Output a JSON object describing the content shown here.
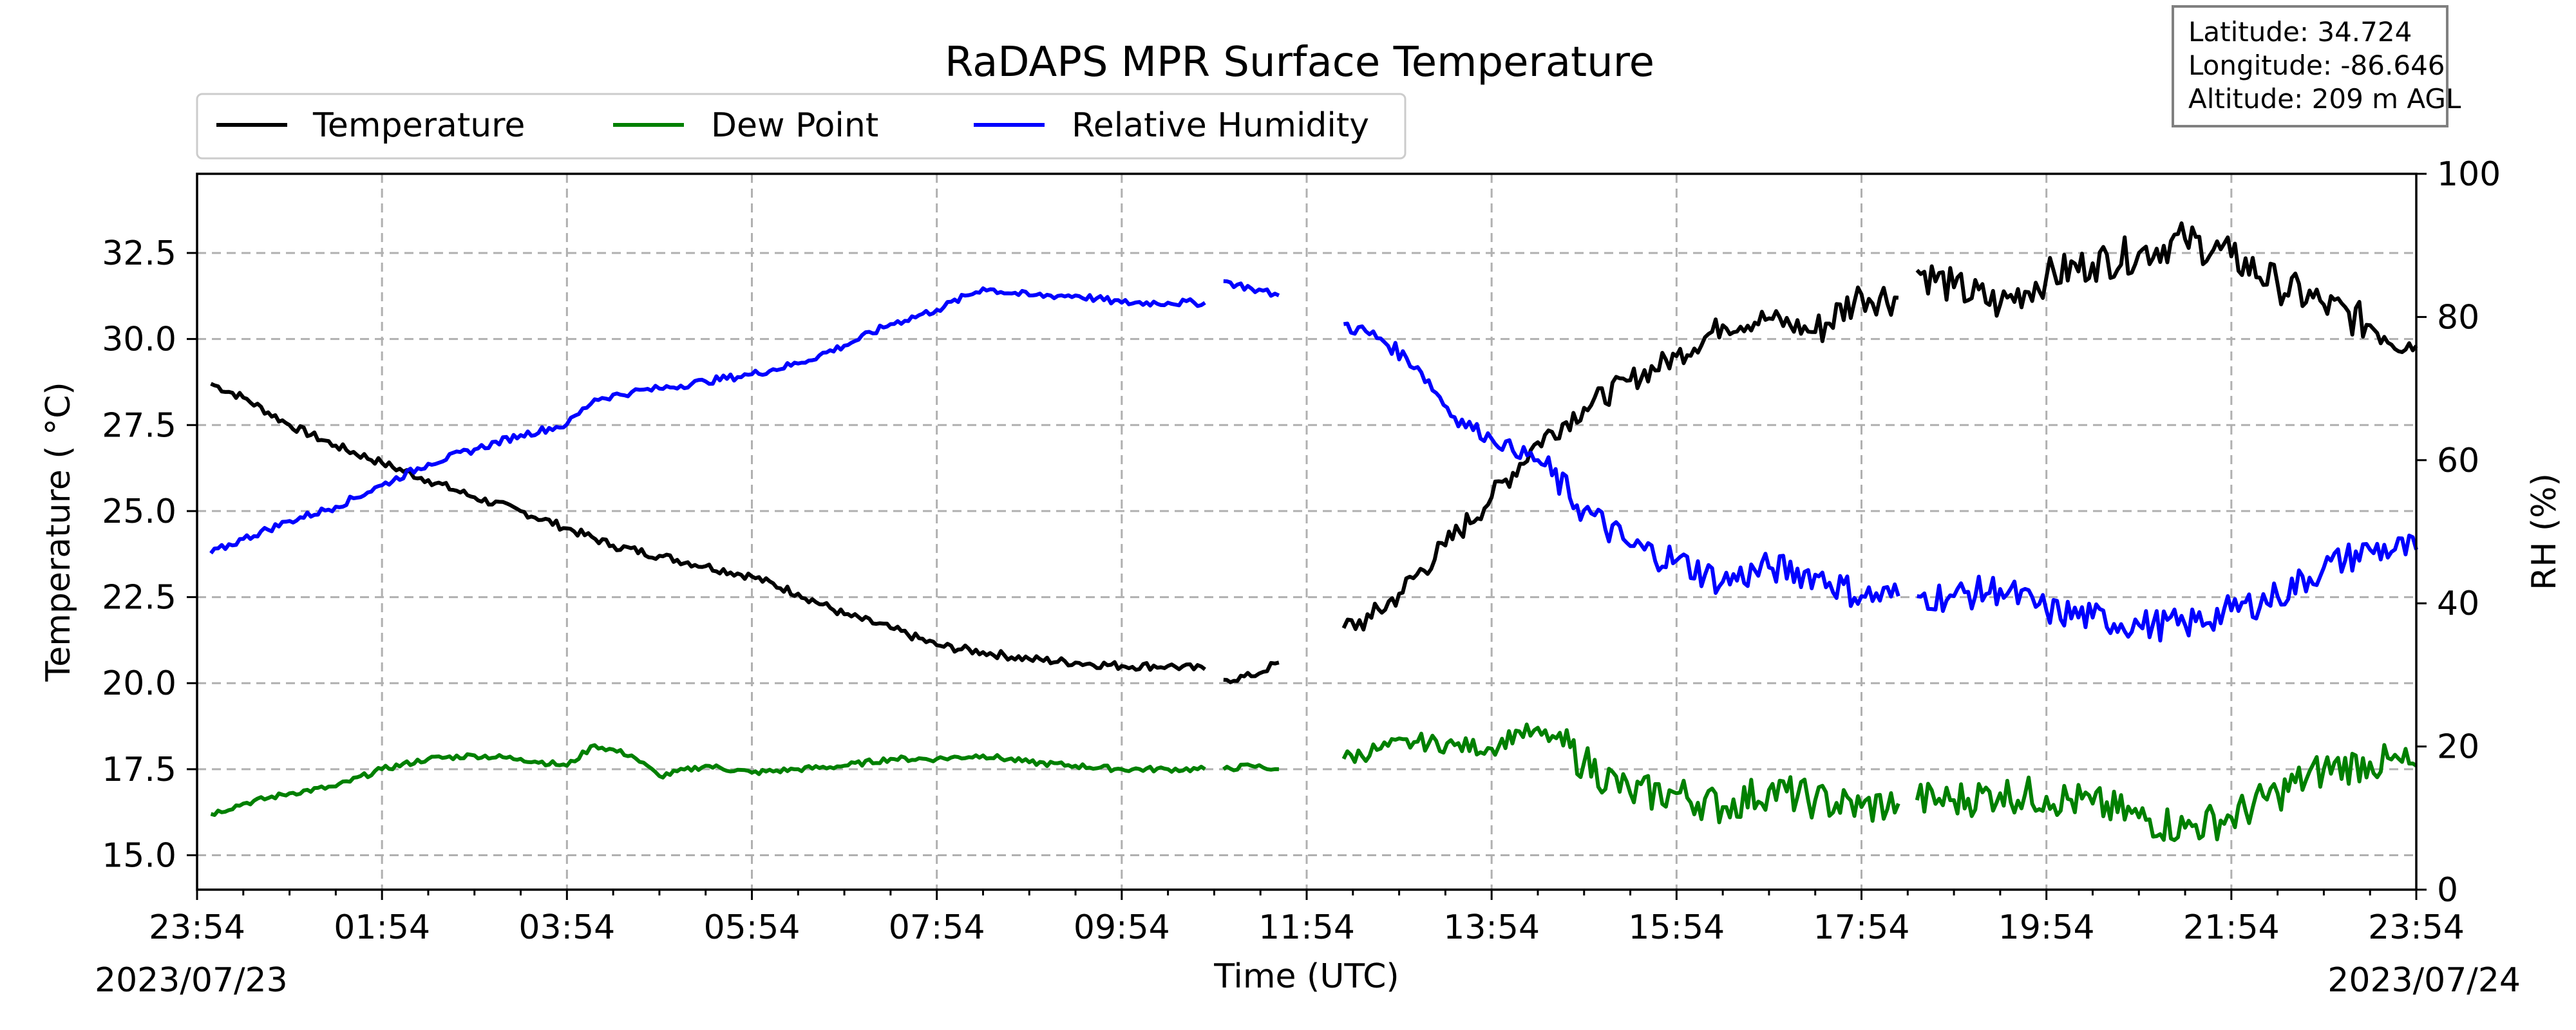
{
  "chart_data": {
    "type": "line",
    "title": "RaDAPS MPR Surface Temperature",
    "xlabel": "Time (UTC)",
    "ylabel": "Temperature ( $^\\circ$C)",
    "ylabel_display": "Temperature ( °C)",
    "y2label": "RH (%)",
    "xlim_hours": [
      0,
      24
    ],
    "ylim": [
      14.0,
      34.8
    ],
    "y2lim": [
      0,
      100
    ],
    "x_ticks": [
      "23:54",
      "01:54",
      "03:54",
      "05:54",
      "07:54",
      "09:54",
      "11:54",
      "13:54",
      "15:54",
      "17:54",
      "19:54",
      "21:54",
      "23:54"
    ],
    "x_tick_hours": [
      0,
      2,
      4,
      6,
      8,
      10,
      12,
      14,
      16,
      18,
      20,
      22,
      24
    ],
    "y_ticks": [
      "15.0",
      "17.5",
      "20.0",
      "22.5",
      "25.0",
      "27.5",
      "30.0",
      "32.5"
    ],
    "y_tick_values": [
      15.0,
      17.5,
      20.0,
      22.5,
      25.0,
      27.5,
      30.0,
      32.5
    ],
    "y2_ticks": [
      "0",
      "20",
      "40",
      "60",
      "80",
      "100"
    ],
    "y2_tick_values": [
      0,
      20,
      40,
      60,
      80,
      100
    ],
    "start_date": "2023/07/23",
    "end_date": "2023/07/24",
    "grid": true,
    "legend_position": "top-left",
    "location_box": {
      "latitude": "Latitude: 34.724",
      "longitude": "Longitude: -86.646",
      "altitude": "Altitude: 209 m AGL"
    },
    "series": [
      {
        "name": "Temperature",
        "axis": "left",
        "color": "#000000",
        "segments": [
          [
            [
              0.15,
              28.7
            ],
            [
              0.5,
              28.3
            ],
            [
              1.0,
              27.5
            ],
            [
              1.5,
              26.9
            ],
            [
              2.0,
              26.4
            ],
            [
              2.5,
              25.9
            ],
            [
              3.0,
              25.4
            ],
            [
              3.5,
              25.0
            ],
            [
              4.0,
              24.5
            ],
            [
              4.5,
              24.0
            ],
            [
              5.0,
              23.7
            ],
            [
              5.5,
              23.4
            ],
            [
              6.0,
              23.1
            ],
            [
              6.5,
              22.6
            ],
            [
              7.0,
              22.0
            ],
            [
              7.5,
              21.6
            ],
            [
              8.0,
              21.1
            ],
            [
              8.5,
              20.9
            ],
            [
              9.0,
              20.7
            ],
            [
              9.5,
              20.6
            ],
            [
              10.0,
              20.5
            ],
            [
              10.5,
              20.5
            ],
            [
              10.9,
              20.4
            ]
          ],
          [
            [
              11.1,
              20.1
            ],
            [
              11.4,
              20.2
            ],
            [
              11.7,
              20.6
            ]
          ],
          [
            [
              12.4,
              21.6
            ],
            [
              12.7,
              21.9
            ],
            [
              13.0,
              22.6
            ],
            [
              13.5,
              24.0
            ],
            [
              14.0,
              25.4
            ],
            [
              14.5,
              27.0
            ],
            [
              15.0,
              28.0
            ],
            [
              15.5,
              28.8
            ],
            [
              16.0,
              29.5
            ],
            [
              16.5,
              30.4
            ],
            [
              17.0,
              30.6
            ],
            [
              17.5,
              30.2
            ],
            [
              18.0,
              31.3
            ],
            [
              18.4,
              31.2
            ]
          ],
          [
            [
              18.6,
              32.0
            ],
            [
              19.0,
              31.5
            ],
            [
              19.5,
              31.0
            ],
            [
              20.0,
              31.8
            ],
            [
              20.5,
              32.2
            ],
            [
              21.0,
              32.5
            ],
            [
              21.5,
              32.9
            ],
            [
              22.0,
              32.4
            ],
            [
              22.5,
              31.6
            ],
            [
              23.0,
              31.0
            ],
            [
              23.5,
              30.4
            ],
            [
              24.0,
              29.8
            ]
          ]
        ]
      },
      {
        "name": "Dew Point",
        "axis": "left",
        "color": "#008000",
        "segments": [
          [
            [
              0.15,
              16.2
            ],
            [
              0.5,
              16.5
            ],
            [
              1.0,
              16.8
            ],
            [
              1.5,
              17.0
            ],
            [
              2.0,
              17.5
            ],
            [
              2.5,
              17.8
            ],
            [
              3.0,
              17.9
            ],
            [
              3.5,
              17.8
            ],
            [
              4.0,
              17.6
            ],
            [
              4.3,
              18.2
            ],
            [
              4.7,
              17.9
            ],
            [
              5.0,
              17.3
            ],
            [
              5.5,
              17.6
            ],
            [
              6.0,
              17.4
            ],
            [
              6.5,
              17.5
            ],
            [
              7.0,
              17.6
            ],
            [
              7.5,
              17.8
            ],
            [
              8.0,
              17.8
            ],
            [
              8.5,
              17.9
            ],
            [
              9.0,
              17.7
            ],
            [
              9.5,
              17.6
            ],
            [
              10.0,
              17.5
            ],
            [
              10.5,
              17.5
            ],
            [
              10.9,
              17.5
            ]
          ],
          [
            [
              11.1,
              17.5
            ],
            [
              11.4,
              17.6
            ],
            [
              11.7,
              17.5
            ]
          ],
          [
            [
              12.4,
              17.8
            ],
            [
              12.8,
              18.1
            ],
            [
              13.2,
              18.3
            ],
            [
              13.6,
              18.2
            ],
            [
              14.0,
              18.1
            ],
            [
              14.3,
              18.6
            ],
            [
              14.7,
              18.4
            ],
            [
              15.0,
              17.7
            ],
            [
              15.5,
              16.8
            ],
            [
              16.0,
              16.8
            ],
            [
              16.5,
              16.4
            ],
            [
              17.0,
              16.9
            ],
            [
              17.5,
              16.6
            ],
            [
              18.0,
              16.4
            ],
            [
              18.4,
              16.5
            ]
          ],
          [
            [
              18.6,
              16.6
            ],
            [
              19.0,
              16.6
            ],
            [
              19.5,
              16.8
            ],
            [
              20.0,
              16.7
            ],
            [
              20.5,
              16.5
            ],
            [
              21.0,
              16.1
            ],
            [
              21.5,
              15.8
            ],
            [
              22.0,
              16.1
            ],
            [
              22.5,
              16.8
            ],
            [
              23.0,
              17.5
            ],
            [
              23.5,
              17.7
            ],
            [
              24.0,
              17.6
            ]
          ]
        ]
      },
      {
        "name": "Relative Humidity",
        "axis": "right",
        "color": "#0000ff",
        "segments": [
          [
            [
              0.15,
              47
            ],
            [
              0.5,
              49
            ],
            [
              1.0,
              51.5
            ],
            [
              1.5,
              53.5
            ],
            [
              2.0,
              56.5
            ],
            [
              2.5,
              59.5
            ],
            [
              3.0,
              61.5
            ],
            [
              3.5,
              63.5
            ],
            [
              4.0,
              65
            ],
            [
              4.3,
              68.5
            ],
            [
              4.7,
              69.5
            ],
            [
              5.0,
              70
            ],
            [
              5.5,
              71
            ],
            [
              6.0,
              72
            ],
            [
              6.5,
              73.5
            ],
            [
              7.0,
              76
            ],
            [
              7.5,
              79
            ],
            [
              8.0,
              81
            ],
            [
              8.5,
              84
            ],
            [
              9.0,
              83
            ],
            [
              9.5,
              83
            ],
            [
              10.0,
              82
            ],
            [
              10.5,
              82
            ],
            [
              10.9,
              82
            ]
          ],
          [
            [
              11.1,
              85
            ],
            [
              11.4,
              84
            ],
            [
              11.7,
              83
            ]
          ],
          [
            [
              12.4,
              79
            ],
            [
              12.8,
              77
            ],
            [
              13.2,
              73
            ],
            [
              13.6,
              66
            ],
            [
              14.0,
              63
            ],
            [
              14.5,
              60
            ],
            [
              15.0,
              53
            ],
            [
              15.5,
              48
            ],
            [
              16.0,
              46
            ],
            [
              16.5,
              43
            ],
            [
              17.0,
              45
            ],
            [
              17.5,
              44
            ],
            [
              18.0,
              41
            ],
            [
              18.4,
              41
            ]
          ],
          [
            [
              18.6,
              41
            ],
            [
              19.0,
              41
            ],
            [
              19.5,
              42
            ],
            [
              20.0,
              39
            ],
            [
              20.5,
              38
            ],
            [
              21.0,
              37
            ],
            [
              21.5,
              37
            ],
            [
              22.0,
              39
            ],
            [
              22.5,
              41
            ],
            [
              23.0,
              45
            ],
            [
              23.5,
              47.5
            ],
            [
              24.0,
              47.5
            ]
          ]
        ]
      }
    ]
  }
}
